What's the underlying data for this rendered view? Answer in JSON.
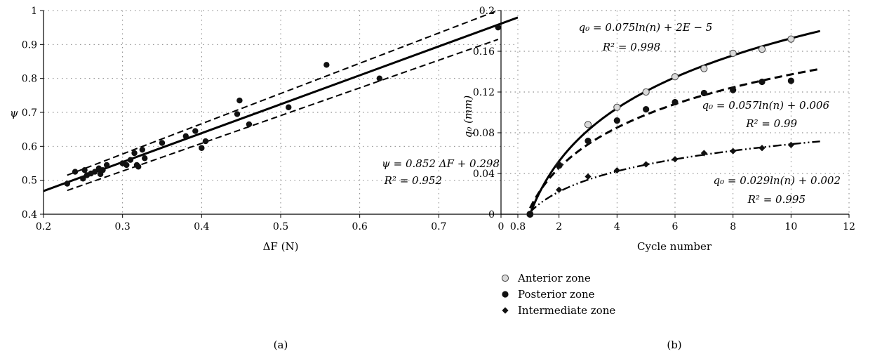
{
  "chart_data": [
    {
      "type": "scatter",
      "panel_label": "(a)",
      "xlabel": "ΔF (N)",
      "ylabel": "ψ",
      "xlim": [
        0.2,
        0.8
      ],
      "ylim": [
        0.4,
        1.0
      ],
      "x_ticks": [
        "0.2",
        "0.3",
        "0.4",
        "0.5",
        "0.6",
        "0.7",
        "0.8"
      ],
      "y_ticks": [
        "0.4",
        "0.5",
        "0.6",
        "0.7",
        "0.8",
        "0.9",
        "1"
      ],
      "grid": "dotted",
      "annotation": [
        "ψ = 0.852 ΔF + 0.298",
        "R² = 0.952"
      ],
      "points": {
        "x": [
          0.23,
          0.24,
          0.25,
          0.252,
          0.255,
          0.26,
          0.265,
          0.27,
          0.272,
          0.275,
          0.28,
          0.3,
          0.305,
          0.31,
          0.315,
          0.318,
          0.32,
          0.325,
          0.328,
          0.35,
          0.38,
          0.392,
          0.4,
          0.405,
          0.445,
          0.448,
          0.46,
          0.51,
          0.558,
          0.625,
          0.775
        ],
        "y": [
          0.49,
          0.525,
          0.505,
          0.53,
          0.515,
          0.52,
          0.525,
          0.535,
          0.518,
          0.53,
          0.545,
          0.55,
          0.545,
          0.56,
          0.58,
          0.545,
          0.54,
          0.59,
          0.565,
          0.61,
          0.63,
          0.645,
          0.595,
          0.615,
          0.695,
          0.735,
          0.665,
          0.715,
          0.84,
          0.8,
          0.95
        ]
      },
      "fit": {
        "slope": 0.852,
        "intercept": 0.298,
        "x_range": [
          0.2,
          0.8
        ]
      },
      "bounds": [
        {
          "x": [
            0.23,
            0.78
          ],
          "y": [
            0.515,
            1.005
          ]
        },
        {
          "x": [
            0.23,
            0.775
          ],
          "y": [
            0.47,
            0.915
          ]
        }
      ]
    },
    {
      "type": "scatter",
      "panel_label": "(b)",
      "xlabel": "Cycle number",
      "ylabel": "q₀ (mm)",
      "xlim": [
        0,
        12
      ],
      "ylim": [
        0,
        0.2
      ],
      "x_ticks": [
        "0",
        "2",
        "4",
        "6",
        "8",
        "10",
        "12"
      ],
      "y_ticks": [
        "0",
        "0.04",
        "0.08",
        "0.12",
        "0.16",
        "0.2"
      ],
      "grid": "dotted",
      "series": [
        {
          "name": "Anterior zone",
          "marker": "circle-open",
          "x": [
            1,
            2,
            3,
            4,
            5,
            6,
            7,
            8,
            9,
            10
          ],
          "y": [
            0.0,
            0.048,
            0.088,
            0.105,
            0.12,
            0.135,
            0.143,
            0.158,
            0.162,
            0.172
          ],
          "fit": {
            "a": 0.075,
            "b": 2e-05,
            "x_range": [
              1,
              11
            ],
            "style": "solid"
          },
          "annotation": [
            "q₀ = 0.075ln(n) + 2E − 5",
            "R² = 0.998"
          ]
        },
        {
          "name": "Posterior zone",
          "marker": "circle-filled",
          "x": [
            1,
            2,
            3,
            4,
            5,
            6,
            7,
            8,
            9,
            10
          ],
          "y": [
            0.0,
            0.048,
            0.072,
            0.092,
            0.103,
            0.11,
            0.119,
            0.122,
            0.13,
            0.131
          ],
          "fit": {
            "a": 0.057,
            "b": 0.006,
            "x_range": [
              1,
              11
            ],
            "style": "dashed"
          },
          "annotation": [
            "q₀ = 0.057ln(n) + 0.006",
            "R² = 0.99"
          ]
        },
        {
          "name": "Intermediate zone",
          "marker": "diamond",
          "x": [
            1,
            2,
            3,
            4,
            5,
            6,
            7,
            8,
            9,
            10
          ],
          "y": [
            0.0,
            0.024,
            0.037,
            0.043,
            0.049,
            0.054,
            0.06,
            0.062,
            0.065,
            0.068
          ],
          "fit": {
            "a": 0.029,
            "b": 0.002,
            "x_range": [
              1,
              11
            ],
            "style": "dash-dot-dot"
          },
          "annotation": [
            "q₀ = 0.029ln(n) + 0.002",
            "R² = 0.995"
          ]
        }
      ],
      "legend_position": "below"
    }
  ]
}
